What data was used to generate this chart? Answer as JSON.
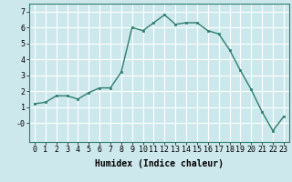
{
  "x": [
    0,
    1,
    2,
    3,
    4,
    5,
    6,
    7,
    8,
    9,
    10,
    11,
    12,
    13,
    14,
    15,
    16,
    17,
    18,
    19,
    20,
    21,
    22,
    23
  ],
  "y": [
    1.2,
    1.3,
    1.7,
    1.7,
    1.5,
    1.9,
    2.2,
    2.2,
    3.2,
    6.0,
    5.8,
    6.3,
    6.8,
    6.2,
    6.3,
    6.3,
    5.8,
    5.6,
    4.6,
    3.3,
    2.1,
    0.7,
    -0.5,
    0.4
  ],
  "line_color": "#2e7d6e",
  "marker": "s",
  "marker_size": 2,
  "bg_color": "#cde8ec",
  "grid_color": "#ffffff",
  "xlabel": "Humidex (Indice chaleur)",
  "xlim": [
    -0.5,
    23.5
  ],
  "ylim": [
    -1.2,
    7.5
  ],
  "yticks": [
    0,
    1,
    2,
    3,
    4,
    5,
    6,
    7
  ],
  "ytick_labels": [
    "-0",
    "1",
    "2",
    "3",
    "4",
    "5",
    "6",
    "7"
  ],
  "xticks": [
    0,
    1,
    2,
    3,
    4,
    5,
    6,
    7,
    8,
    9,
    10,
    11,
    12,
    13,
    14,
    15,
    16,
    17,
    18,
    19,
    20,
    21,
    22,
    23
  ],
  "xlabel_fontsize": 7,
  "tick_fontsize": 6,
  "linewidth": 1.0
}
